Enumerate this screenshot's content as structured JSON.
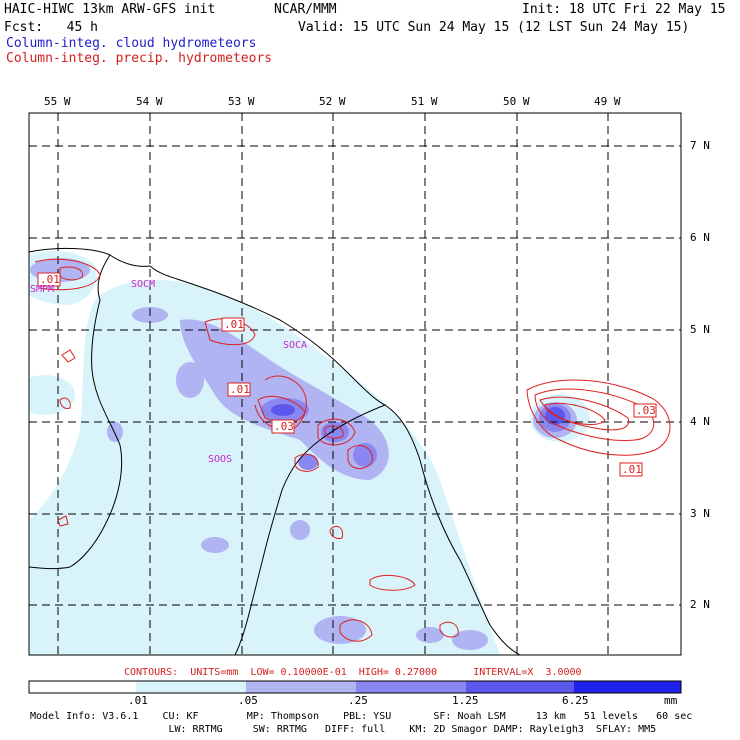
{
  "header": {
    "model_title": "HAIC-HIWC 13km ARW-GFS init",
    "org": "NCAR/MMM",
    "init_line": "Init: 18 UTC Fri 22 May 15",
    "fcst_line": "Fcst:   45 h",
    "valid_line": "Valid: 15 UTC Sun 24 May 15 (12 LST Sun 24 May 15)",
    "field1": "Column-integ. cloud hydrometeors",
    "field2": "Column-integ. precip. hydrometeors"
  },
  "map": {
    "lon_labels": [
      "55 W",
      "54 W",
      "53 W",
      "52 W",
      "51 W",
      "50 W",
      "49 W"
    ],
    "lat_labels": [
      "7 N",
      "6 N",
      "5 N",
      "4 N",
      "3 N",
      "2 N"
    ],
    "station_labels": [
      "SMPM",
      "SOCM",
      "SOCA",
      "SOOS"
    ],
    "contour_labels": [
      ".01",
      ".01",
      ".01",
      ".03",
      ".03",
      ".01"
    ],
    "colors": {
      "cloud_shading": "#6060f0",
      "precip_contour": "#dd2020",
      "grid": "#000000"
    }
  },
  "contour_info": "CONTOURS:  UNITS=mm  LOW= 0.10000E-01  HIGH= 0.27000      INTERVAL=X  3.0000",
  "colorbar": {
    "ticks": [
      ".01",
      ".05",
      ".25",
      "1.25",
      "6.25"
    ],
    "unit": "mm",
    "colors": [
      "#ffffff",
      "#d8f4fa",
      "#b0b4f2",
      "#8a88f0",
      "#5c58ee",
      "#2828f0",
      "#1010e8"
    ]
  },
  "footer": {
    "line1": "Model Info: V3.6.1    CU: KF        MP: Thompson    PBL: YSU       SF: Noah LSM     13 km   51 levels   60 sec",
    "line2": "                       LW: RRTMG     SW: RRTMG   DIFF: full    KM: 2D Smagor DAMP: Rayleigh3  SFLAY: MM5"
  }
}
